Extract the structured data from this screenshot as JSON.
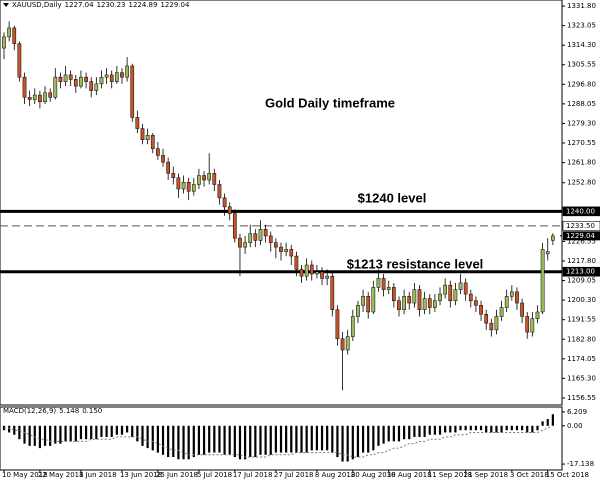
{
  "chart_data": {
    "type": "candlestick",
    "symbol": "XAUUSD,Daily",
    "title": "Gold Daily timeframe",
    "annotations": [
      "$1240 level",
      "$1213 resistance level"
    ],
    "bull_color": "#9bbb59",
    "bear_color": "#c8532a",
    "categories": [
      "10 May 2018",
      null,
      null,
      null,
      null,
      null,
      null,
      "22 May 2018",
      null,
      null,
      null,
      null,
      null,
      null,
      null,
      "1 Jun 2018",
      null,
      null,
      null,
      null,
      null,
      null,
      null,
      "13 Jun 2018",
      null,
      null,
      null,
      null,
      null,
      null,
      "25 Jun 2018",
      null,
      null,
      null,
      null,
      null,
      null,
      null,
      "5 Jul 2018",
      null,
      null,
      null,
      null,
      null,
      null,
      "17 Jul 2018",
      null,
      null,
      null,
      null,
      null,
      null,
      null,
      "27 Jul 2018",
      null,
      null,
      null,
      null,
      null,
      null,
      null,
      "8 Aug 2018",
      null,
      null,
      null,
      null,
      null,
      null,
      "20 Aug 2018",
      null,
      null,
      null,
      null,
      null,
      null,
      "30 Aug 2018",
      null,
      null,
      null,
      null,
      null,
      null,
      null,
      "11 Sep 2018",
      null,
      null,
      null,
      null,
      null,
      null,
      "21 Sep 2018",
      null,
      null,
      null,
      null,
      null,
      null,
      null,
      null,
      "3 Oct 2018",
      null,
      null,
      null,
      null,
      null,
      null,
      "15 Oct 2018",
      null
    ],
    "candles": [
      [
        1313,
        1320,
        1308,
        1318
      ],
      [
        1318,
        1325,
        1316,
        1322
      ],
      [
        1322,
        1323,
        1312,
        1315
      ],
      [
        1315,
        1316,
        1298,
        1300
      ],
      [
        1300,
        1302,
        1288,
        1291
      ],
      [
        1291,
        1294,
        1287,
        1290
      ],
      [
        1290,
        1295,
        1288,
        1292
      ],
      [
        1292,
        1294,
        1286,
        1289
      ],
      [
        1289,
        1296,
        1288,
        1293
      ],
      [
        1293,
        1295,
        1289,
        1291
      ],
      [
        1291,
        1304,
        1290,
        1300
      ],
      [
        1300,
        1302,
        1295,
        1298
      ],
      [
        1298,
        1305,
        1296,
        1301
      ],
      [
        1301,
        1303,
        1296,
        1299
      ],
      [
        1299,
        1301,
        1293,
        1296
      ],
      [
        1296,
        1303,
        1295,
        1300
      ],
      [
        1300,
        1302,
        1295,
        1298
      ],
      [
        1298,
        1300,
        1291,
        1294
      ],
      [
        1294,
        1300,
        1292,
        1297
      ],
      [
        1297,
        1303,
        1295,
        1300
      ],
      [
        1300,
        1304,
        1297,
        1301
      ],
      [
        1301,
        1303,
        1295,
        1298
      ],
      [
        1298,
        1305,
        1297,
        1302
      ],
      [
        1302,
        1304,
        1297,
        1300
      ],
      [
        1300,
        1309,
        1298,
        1305
      ],
      [
        1305,
        1306,
        1280,
        1282
      ],
      [
        1282,
        1285,
        1275,
        1277
      ],
      [
        1277,
        1279,
        1270,
        1272
      ],
      [
        1272,
        1277,
        1270,
        1274
      ],
      [
        1274,
        1275,
        1266,
        1268
      ],
      [
        1268,
        1271,
        1263,
        1265
      ],
      [
        1265,
        1268,
        1260,
        1262
      ],
      [
        1262,
        1264,
        1254,
        1257
      ],
      [
        1257,
        1260,
        1252,
        1255
      ],
      [
        1255,
        1257,
        1246,
        1250
      ],
      [
        1250,
        1256,
        1248,
        1253
      ],
      [
        1253,
        1255,
        1245,
        1249
      ],
      [
        1249,
        1255,
        1247,
        1252
      ],
      [
        1252,
        1259,
        1250,
        1256
      ],
      [
        1256,
        1258,
        1251,
        1254
      ],
      [
        1254,
        1266,
        1252,
        1257
      ],
      [
        1257,
        1259,
        1249,
        1252
      ],
      [
        1252,
        1254,
        1243,
        1246
      ],
      [
        1246,
        1248,
        1238,
        1242
      ],
      [
        1242,
        1244,
        1236,
        1239
      ],
      [
        1239,
        1241,
        1226,
        1228
      ],
      [
        1228,
        1230,
        1211,
        1224
      ],
      [
        1224,
        1229,
        1221,
        1226
      ],
      [
        1226,
        1234,
        1224,
        1230
      ],
      [
        1230,
        1232,
        1224,
        1227
      ],
      [
        1227,
        1236,
        1225,
        1232
      ],
      [
        1232,
        1234,
        1226,
        1229
      ],
      [
        1229,
        1231,
        1222,
        1226
      ],
      [
        1226,
        1228,
        1219,
        1224
      ],
      [
        1224,
        1226,
        1218,
        1222
      ],
      [
        1222,
        1226,
        1220,
        1223
      ],
      [
        1223,
        1225,
        1216,
        1220
      ],
      [
        1220,
        1222,
        1211,
        1214
      ],
      [
        1214,
        1216,
        1208,
        1211
      ],
      [
        1211,
        1219,
        1209,
        1216
      ],
      [
        1216,
        1218,
        1209,
        1212
      ],
      [
        1212,
        1216,
        1210,
        1213
      ],
      [
        1213,
        1215,
        1207,
        1210
      ],
      [
        1210,
        1214,
        1207,
        1211
      ],
      [
        1211,
        1213,
        1193,
        1196
      ],
      [
        1196,
        1198,
        1180,
        1183
      ],
      [
        1183,
        1186,
        1160,
        1178
      ],
      [
        1178,
        1187,
        1176,
        1184
      ],
      [
        1184,
        1196,
        1182,
        1193
      ],
      [
        1193,
        1200,
        1190,
        1198
      ],
      [
        1198,
        1205,
        1195,
        1202
      ],
      [
        1202,
        1204,
        1192,
        1195
      ],
      [
        1195,
        1209,
        1194,
        1206
      ],
      [
        1206,
        1214,
        1204,
        1210
      ],
      [
        1210,
        1212,
        1202,
        1205
      ],
      [
        1205,
        1209,
        1203,
        1206
      ],
      [
        1206,
        1208,
        1197,
        1200
      ],
      [
        1200,
        1202,
        1193,
        1196
      ],
      [
        1196,
        1205,
        1194,
        1202
      ],
      [
        1202,
        1204,
        1196,
        1199
      ],
      [
        1199,
        1208,
        1197,
        1205
      ],
      [
        1205,
        1207,
        1193,
        1196
      ],
      [
        1196,
        1204,
        1194,
        1201
      ],
      [
        1201,
        1203,
        1194,
        1197
      ],
      [
        1197,
        1203,
        1195,
        1200
      ],
      [
        1200,
        1206,
        1198,
        1203
      ],
      [
        1203,
        1210,
        1201,
        1207
      ],
      [
        1207,
        1209,
        1197,
        1200
      ],
      [
        1200,
        1208,
        1198,
        1205
      ],
      [
        1205,
        1212,
        1203,
        1208
      ],
      [
        1208,
        1210,
        1200,
        1203
      ],
      [
        1203,
        1205,
        1197,
        1200
      ],
      [
        1200,
        1202,
        1195,
        1198
      ],
      [
        1198,
        1200,
        1191,
        1194
      ],
      [
        1194,
        1196,
        1187,
        1190
      ],
      [
        1190,
        1192,
        1184,
        1187
      ],
      [
        1187,
        1196,
        1185,
        1193
      ],
      [
        1193,
        1200,
        1191,
        1197
      ],
      [
        1197,
        1205,
        1195,
        1202
      ],
      [
        1202,
        1207,
        1200,
        1204
      ],
      [
        1204,
        1206,
        1196,
        1199
      ],
      [
        1199,
        1201,
        1190,
        1193
      ],
      [
        1193,
        1195,
        1183,
        1186
      ],
      [
        1186,
        1195,
        1184,
        1192
      ],
      [
        1192,
        1198,
        1190,
        1195
      ],
      [
        1195,
        1226,
        1194,
        1223
      ],
      [
        1221,
        1228,
        1218,
        1222
      ],
      [
        1227.04,
        1230.23,
        1224.89,
        1229.04
      ]
    ],
    "ylim": [
      1153.4,
      1334.5
    ],
    "yticks": [
      {
        "value": 1331.8,
        "label": "1331.80"
      },
      {
        "value": 1323.05,
        "label": "1323.05"
      },
      {
        "value": 1314.3,
        "label": "1314.30"
      },
      {
        "value": 1305.55,
        "label": "1305.55"
      },
      {
        "value": 1296.8,
        "label": "1296.80"
      },
      {
        "value": 1288.05,
        "label": "1288.05"
      },
      {
        "value": 1279.3,
        "label": "1279.30"
      },
      {
        "value": 1270.55,
        "label": "1270.55"
      },
      {
        "value": 1261.8,
        "label": "1261.80"
      },
      {
        "value": 1252.8,
        "label": "1252.80"
      },
      {
        "value": 1226.55,
        "label": "1226.55"
      },
      {
        "value": 1217.8,
        "label": "1217.80"
      },
      {
        "value": 1209.05,
        "label": "1209.05"
      },
      {
        "value": 1200.3,
        "label": "1200.30"
      },
      {
        "value": 1191.55,
        "label": "1191.55"
      },
      {
        "value": 1182.8,
        "label": "1182.80"
      },
      {
        "value": 1174.05,
        "label": "1174.05"
      },
      {
        "value": 1165.3,
        "label": "1165.30"
      },
      {
        "value": 1156.55,
        "label": "1156.55"
      }
    ],
    "levels": [
      {
        "value": 1240,
        "label": "1240.00",
        "style": "solid"
      },
      {
        "value": 1213,
        "label": "1213.00",
        "style": "solid"
      },
      {
        "value": 1233.5,
        "label": "1233.50",
        "style": "dashed"
      }
    ],
    "last_price": {
      "value": 1229.04,
      "label": "1229.04"
    },
    "macd": {
      "title": "MACD(12,26,9)",
      "signal_readout": "0.150",
      "values": [
        -2,
        -3,
        -4,
        -6,
        -8,
        -9,
        -9,
        -10,
        -9,
        -9,
        -8,
        -8,
        -7,
        -7,
        -7,
        -6,
        -6,
        -6,
        -6,
        -5,
        -5,
        -5,
        -4,
        -4,
        -3,
        -5,
        -7,
        -9,
        -10,
        -11,
        -12,
        -13,
        -14,
        -14,
        -15,
        -15,
        -15,
        -14,
        -13,
        -13,
        -12,
        -12,
        -12,
        -13,
        -13,
        -14,
        -15,
        -15,
        -14,
        -14,
        -13,
        -13,
        -13,
        -12,
        -12,
        -12,
        -12,
        -12,
        -12,
        -12,
        -11,
        -11,
        -11,
        -11,
        -12,
        -14,
        -16,
        -16,
        -15,
        -14,
        -12,
        -12,
        -11,
        -9,
        -8,
        -7,
        -7,
        -7,
        -6,
        -6,
        -5,
        -5,
        -5,
        -4,
        -4,
        -4,
        -3,
        -3,
        -3,
        -2,
        -2,
        -2,
        -2,
        -2,
        -3,
        -3,
        -3,
        -3,
        -2,
        -2,
        -2,
        -2,
        -3,
        -3,
        -2,
        2,
        3,
        5.148
      ],
      "signal": [
        -1,
        -1,
        -2,
        -2,
        -3,
        -4,
        -5,
        -6,
        -6,
        -7,
        -7,
        -7,
        -7,
        -7,
        -7,
        -7,
        -7,
        -6,
        -6,
        -6,
        -6,
        -6,
        -5,
        -5,
        -5,
        -5,
        -5,
        -6,
        -7,
        -7,
        -8,
        -9,
        -10,
        -11,
        -11,
        -12,
        -13,
        -13,
        -13,
        -13,
        -13,
        -13,
        -13,
        -13,
        -13,
        -13,
        -13,
        -14,
        -14,
        -14,
        -14,
        -14,
        -13,
        -13,
        -13,
        -13,
        -13,
        -12,
        -12,
        -12,
        -12,
        -12,
        -12,
        -12,
        -12,
        -12,
        -13,
        -13,
        -14,
        -14,
        -14,
        -13,
        -13,
        -12,
        -12,
        -11,
        -10,
        -10,
        -9,
        -8,
        -8,
        -7,
        -7,
        -6,
        -6,
        -6,
        -5,
        -5,
        -4,
        -4,
        -4,
        -3,
        -3,
        -3,
        -3,
        -3,
        -3,
        -3,
        -3,
        -3,
        -3,
        -3,
        -3,
        -3,
        -3,
        -2,
        -1,
        0.15
      ],
      "ylim": [
        -19.8,
        8.4
      ],
      "yticks": [
        6.209,
        {
          "value": 0,
          "label": "0.00"
        },
        -17.138
      ]
    }
  }
}
